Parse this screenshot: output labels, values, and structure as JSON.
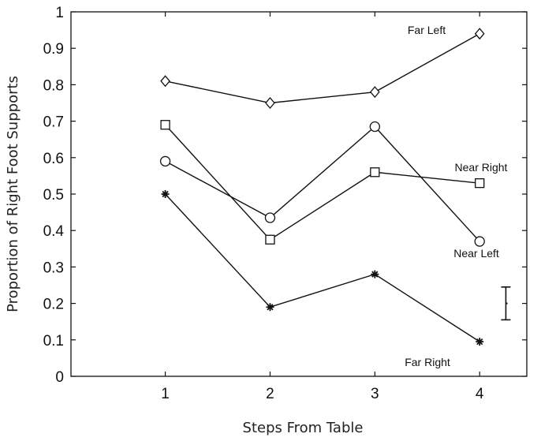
{
  "chart_data": {
    "type": "line",
    "xlabel": "Steps From Table",
    "ylabel": "Proportion of Right Foot Supports",
    "xlim": [
      0.1,
      4.45
    ],
    "ylim": [
      0,
      1
    ],
    "x_ticks": [
      "1",
      "2",
      "3",
      "4"
    ],
    "y_ticks": [
      "0",
      "0.1",
      "0.2",
      "0.3",
      "0.4",
      "0.5",
      "0.6",
      "0.7",
      "0.8",
      "0.9",
      "1"
    ],
    "x": [
      1,
      2,
      3,
      4
    ],
    "grid": false,
    "series": [
      {
        "name": "Far Left",
        "marker": "diamond",
        "values": [
          0.81,
          0.75,
          0.78,
          0.94
        ]
      },
      {
        "name": "Near Right",
        "marker": "square",
        "values": [
          0.69,
          0.375,
          0.56,
          0.53
        ]
      },
      {
        "name": "Near Left",
        "marker": "circle",
        "values": [
          0.59,
          0.435,
          0.685,
          0.37
        ]
      },
      {
        "name": "Far Right",
        "marker": "star",
        "values": [
          0.5,
          0.19,
          0.28,
          0.095
        ]
      }
    ],
    "error_bar": {
      "x": 4.25,
      "center": 0.2,
      "low": 0.155,
      "high": 0.245
    },
    "line_color": "#111111"
  }
}
